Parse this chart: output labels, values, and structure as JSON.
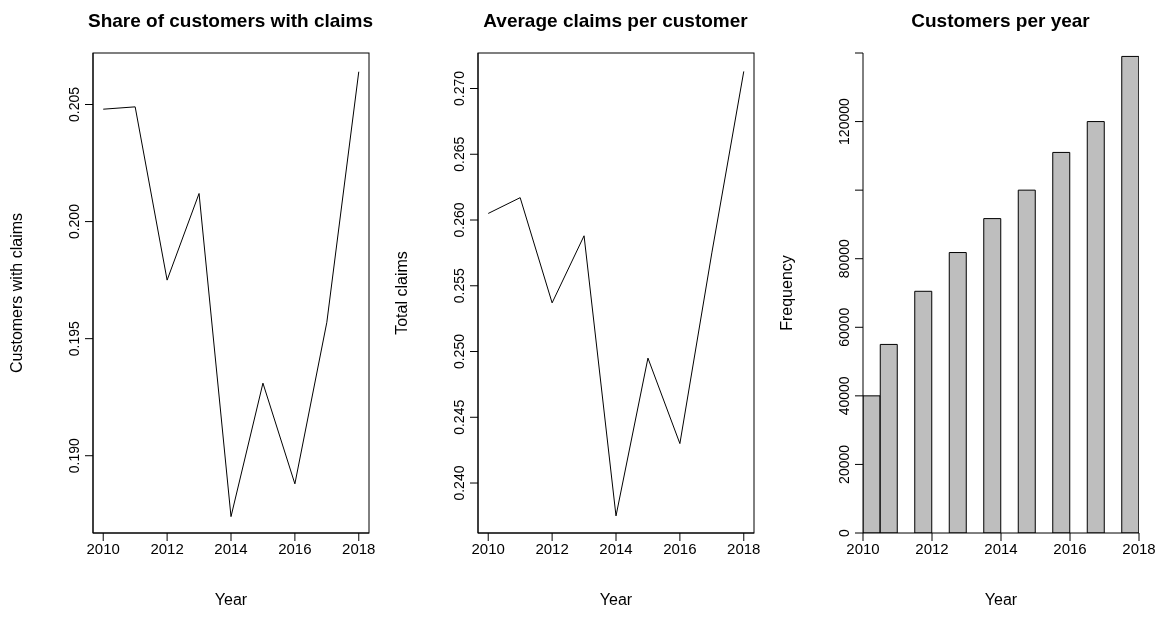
{
  "chart_data": [
    {
      "type": "line",
      "title": "Share of customers with claims",
      "xlabel": "Year",
      "ylabel": "Customers with claims",
      "x": [
        2010,
        2011,
        2012,
        2013,
        2014,
        2015,
        2016,
        2017,
        2018
      ],
      "values": [
        0.2048,
        0.2049,
        0.1975,
        0.2012,
        0.1874,
        0.1931,
        0.1888,
        0.1957,
        0.2064
      ],
      "color": "#000000",
      "marker": "none",
      "xlim": [
        2009.68,
        2018.32
      ],
      "ylim": [
        0.1867,
        0.2072
      ],
      "xticks": [
        2010,
        2012,
        2014,
        2016,
        2018
      ],
      "yticks": [
        {
          "value": 0.19,
          "label": "0.190"
        },
        0.195,
        {
          "value": 0.2,
          "label": "0.200"
        },
        0.205
      ]
    },
    {
      "type": "line",
      "title": "Average claims per customer",
      "xlabel": "Year",
      "ylabel": "Total claims",
      "x": [
        2010,
        2011,
        2012,
        2013,
        2014,
        2015,
        2016,
        2017,
        2018
      ],
      "values": [
        0.2605,
        0.2617,
        0.2537,
        0.2588,
        0.2375,
        0.2495,
        0.243,
        0.2575,
        0.2713
      ],
      "color": "#000000",
      "marker": "none",
      "xlim": [
        2009.68,
        2018.32
      ],
      "ylim": [
        0.2362,
        0.2727
      ],
      "xticks": [
        2010,
        2012,
        2014,
        2016,
        2018
      ],
      "yticks": [
        {
          "value": 0.24,
          "label": "0.240"
        },
        0.245,
        {
          "value": 0.25,
          "label": "0.250"
        },
        0.255,
        {
          "value": 0.26,
          "label": "0.260"
        },
        0.265,
        {
          "value": 0.27,
          "label": "0.270"
        }
      ]
    },
    {
      "type": "histogram",
      "title": "Customers per year",
      "xlabel": "Year",
      "ylabel": "Frequency",
      "bins": [
        2010,
        2010.5,
        2011,
        2011.5,
        2012,
        2012.5,
        2013,
        2013.5,
        2014,
        2014.5,
        2015,
        2015.5,
        2016,
        2016.5,
        2017,
        2017.5,
        2018
      ],
      "values": [
        40000,
        55000,
        0,
        70500,
        0,
        81800,
        0,
        91700,
        0,
        100000,
        0,
        111000,
        0,
        120000,
        0,
        139000
      ],
      "color": "#bebebe",
      "xlim": [
        2010,
        2018
      ],
      "ylim": [
        0,
        140000
      ],
      "xticks": [
        2010,
        2012,
        2014,
        2016,
        2018
      ],
      "yticks": [
        0,
        20000,
        40000,
        60000,
        80000,
        {
          "value": 100000,
          "label": null
        },
        120000,
        {
          "value": 140000,
          "label": null
        }
      ]
    }
  ]
}
